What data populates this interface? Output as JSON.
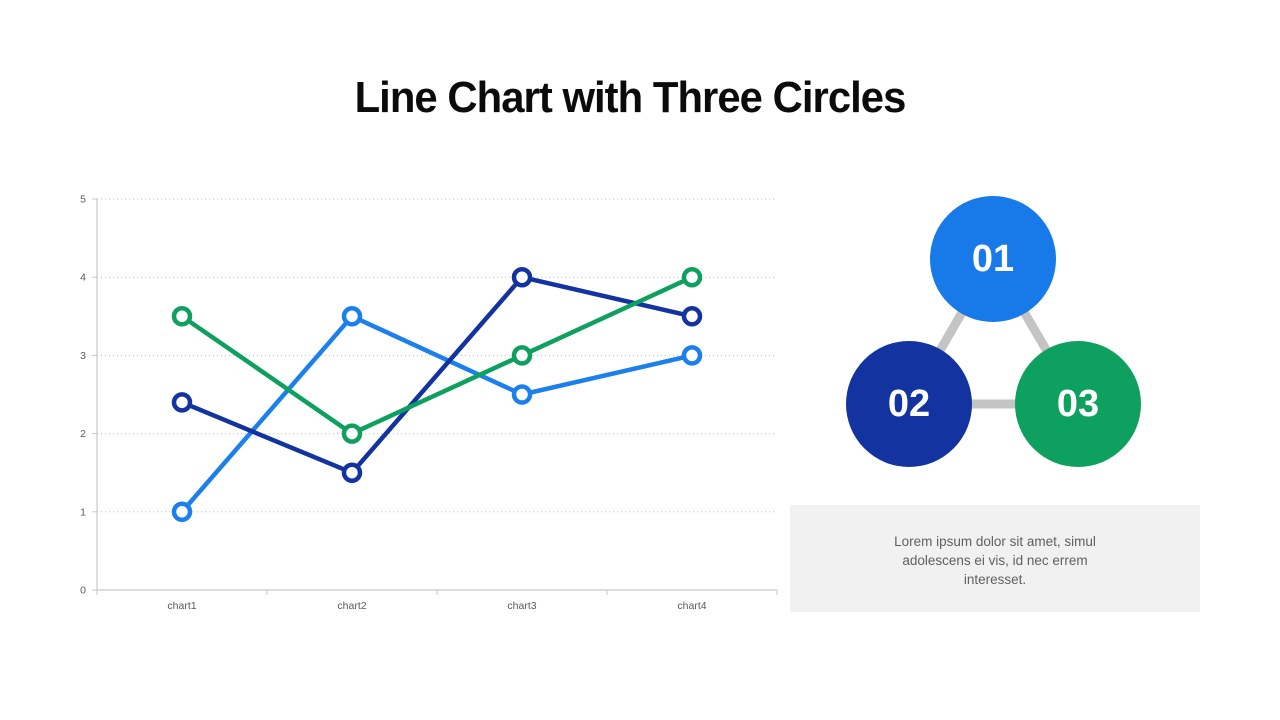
{
  "slide": {
    "title": "Line Chart with Three Circles",
    "background": "#ffffff"
  },
  "chart_data": {
    "type": "line",
    "categories": [
      "chart1",
      "chart2",
      "chart3",
      "chart4"
    ],
    "series": [
      {
        "name": "series-light-blue",
        "color": "#1b80ec",
        "values": [
          1,
          3.5,
          2.5,
          3
        ]
      },
      {
        "name": "series-dark-blue",
        "color": "#1233a0",
        "values": [
          2.4,
          1.5,
          4,
          3.5
        ]
      },
      {
        "name": "series-green",
        "color": "#0da05f",
        "values": [
          3.5,
          2,
          3,
          4
        ]
      }
    ],
    "title": "",
    "xlabel": "",
    "ylabel": "",
    "ylim": [
      0,
      5
    ],
    "yticks": [
      0,
      1,
      2,
      3,
      4,
      5
    ],
    "grid": "horizontal-dotted",
    "legend_position": "none",
    "marker": "open-circle-white-fill",
    "axis_line_color": "#c9c9c9",
    "grid_color": "#bdbdbd",
    "tick_label_color": "#595959"
  },
  "diagram": {
    "circles": [
      {
        "label": "01",
        "color": "#177ae8"
      },
      {
        "label": "02",
        "color": "#1233a0"
      },
      {
        "label": "03",
        "color": "#0da05f"
      }
    ],
    "connector_color": "#c4c4c4"
  },
  "caption": {
    "text": "Lorem ipsum dolor sit amet, simul adolescens ei vis, id nec errem interesset.",
    "background": "#f1f1f1",
    "text_color": "#606060"
  }
}
